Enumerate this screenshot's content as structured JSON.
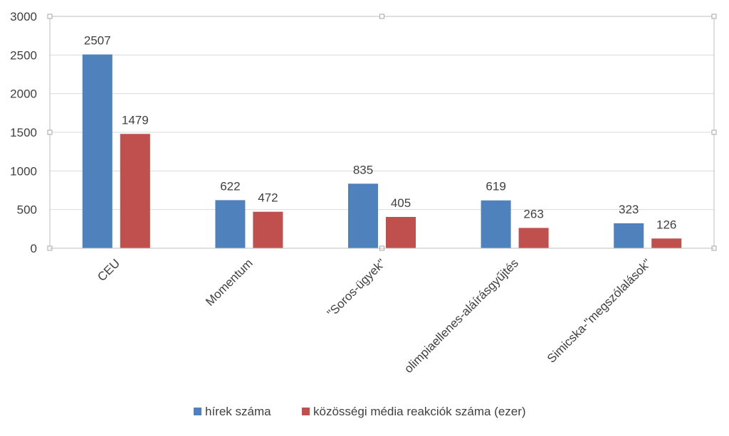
{
  "chart_data": {
    "type": "bar",
    "title": "",
    "xlabel": "",
    "ylabel": "",
    "categories": [
      "CEU",
      "Momentum",
      "\"Soros-ügyek\"",
      "olimpiaellenes-aláírásgyűjtés",
      "Simicska-\"megszólalások\""
    ],
    "series": [
      {
        "name": "hírek száma",
        "color": "#4f81bd",
        "values": [
          2507,
          622,
          835,
          619,
          323
        ]
      },
      {
        "name": "közösségi média reakciók száma (ezer)",
        "color": "#c0504d",
        "values": [
          1479,
          472,
          405,
          263,
          126
        ]
      }
    ],
    "ylim": [
      0,
      3000
    ],
    "yticks": [
      0,
      500,
      1000,
      1500,
      2000,
      2500,
      3000
    ],
    "grid": true,
    "legend_position": "bottom",
    "data_labels": true
  }
}
